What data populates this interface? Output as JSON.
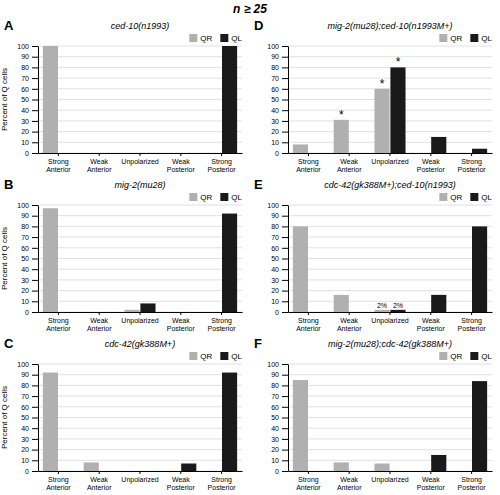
{
  "chart_data": [
    {
      "type": "bar",
      "label": "A",
      "title": "ced-10(n1993)",
      "ylabel": "Percent of Q cells",
      "categories": [
        "Strong\nAnterior",
        "Weak\nAnterior",
        "Unpolarized",
        "Weak\nPosterior",
        "Strong\nPosterior"
      ],
      "series": [
        {
          "name": "QR",
          "color": "#b0b0b0",
          "values": [
            100,
            0,
            0,
            0,
            0
          ]
        },
        {
          "name": "QL",
          "color": "#1a1a1a",
          "values": [
            0,
            0,
            0,
            0,
            100
          ]
        }
      ],
      "ylim": [
        0,
        100
      ],
      "yticks": [
        0,
        10,
        20,
        30,
        40,
        50,
        60,
        70,
        80,
        90,
        100
      ],
      "grid": true,
      "legend": "upper right",
      "annotations": [
        {
          "text": "n ≥ 25"
        }
      ]
    },
    {
      "type": "bar",
      "label": "B",
      "title": "mig-2(mu28)",
      "ylabel": "Percent of Q cells",
      "categories": [
        "Strong\nAnterior",
        "Weak\nAnterior",
        "Unpolarized",
        "Weak\nPosterior",
        "Strong\nPosterior"
      ],
      "series": [
        {
          "name": "QR",
          "color": "#b0b0b0",
          "values": [
            97,
            0,
            2,
            0,
            0
          ]
        },
        {
          "name": "QL",
          "color": "#1a1a1a",
          "values": [
            0,
            0,
            8,
            0,
            92
          ]
        }
      ],
      "ylim": [
        0,
        100
      ],
      "yticks": [
        0,
        10,
        20,
        30,
        40,
        50,
        60,
        70,
        80,
        90,
        100
      ],
      "grid": true,
      "legend": "upper right"
    },
    {
      "type": "bar",
      "label": "C",
      "title": "cdc-42(gk388M+)",
      "ylabel": "Percent of Q cells",
      "categories": [
        "Strong\nAnterior",
        "Weak\nAnterior",
        "Unpolarized",
        "Weak\nPosterior",
        "Strong\nPosterior"
      ],
      "series": [
        {
          "name": "QR",
          "color": "#b0b0b0",
          "values": [
            92,
            8,
            0,
            0,
            0
          ]
        },
        {
          "name": "QL",
          "color": "#1a1a1a",
          "values": [
            0,
            0,
            0,
            7,
            92
          ]
        }
      ],
      "ylim": [
        0,
        100
      ],
      "yticks": [
        0,
        10,
        20,
        30,
        40,
        50,
        60,
        70,
        80,
        90,
        100
      ],
      "grid": true,
      "legend": "upper right"
    },
    {
      "type": "bar",
      "label": "D",
      "title": "mig-2(mu28);ced-10(n1993M+)",
      "categories": [
        "Strong\nAnterior",
        "Weak\nAnterior",
        "Unpolarized",
        "Weak\nPosterior",
        "Strong\nPosterior"
      ],
      "series": [
        {
          "name": "QR",
          "color": "#b0b0b0",
          "values": [
            8,
            31,
            60,
            0,
            0
          ]
        },
        {
          "name": "QL",
          "color": "#1a1a1a",
          "values": [
            0,
            0,
            80,
            15,
            4
          ]
        }
      ],
      "ylim": [
        0,
        100
      ],
      "yticks": [
        0,
        10,
        20,
        30,
        40,
        50,
        60,
        70,
        80,
        90,
        100
      ],
      "grid": true,
      "legend": "upper right",
      "annotations": [
        {
          "text": "*",
          "series": 0,
          "index": 1
        },
        {
          "text": "*",
          "series": 0,
          "index": 2
        },
        {
          "text": "*",
          "series": 1,
          "index": 2
        }
      ]
    },
    {
      "type": "bar",
      "label": "E",
      "title": "cdc-42(gk388M+);ced-10(n1993)",
      "categories": [
        "Strong\nAnterior",
        "Weak\nAnterior",
        "Unpolarized",
        "Weak\nPosterior",
        "Strong\nPosterior"
      ],
      "series": [
        {
          "name": "QR",
          "color": "#b0b0b0",
          "values": [
            80,
            16,
            2,
            0,
            0
          ]
        },
        {
          "name": "QL",
          "color": "#1a1a1a",
          "values": [
            0,
            0,
            2,
            16,
            80
          ]
        }
      ],
      "ylim": [
        0,
        100
      ],
      "yticks": [
        0,
        10,
        20,
        30,
        40,
        50,
        60,
        70,
        80,
        90,
        100
      ],
      "grid": true,
      "legend": "upper right",
      "annotations": [
        {
          "text": "2%",
          "series": 0,
          "index": 2
        },
        {
          "text": "2%",
          "series": 1,
          "index": 2
        }
      ]
    },
    {
      "type": "bar",
      "label": "F",
      "title": "mig-2(mu28);cdc-42(gk388M+)",
      "categories": [
        "Strong\nAnterior",
        "Weak\nAnterior",
        "Unpolarized",
        "Weak\nPosterior",
        "Strong\nPosterior"
      ],
      "series": [
        {
          "name": "QR",
          "color": "#b0b0b0",
          "values": [
            85,
            8,
            7,
            0,
            0
          ]
        },
        {
          "name": "QL",
          "color": "#1a1a1a",
          "values": [
            0,
            0,
            0,
            15,
            84
          ]
        }
      ],
      "ylim": [
        0,
        100
      ],
      "yticks": [
        0,
        10,
        20,
        30,
        40,
        50,
        60,
        70,
        80,
        90,
        100
      ],
      "grid": true,
      "legend": "upper right"
    }
  ]
}
